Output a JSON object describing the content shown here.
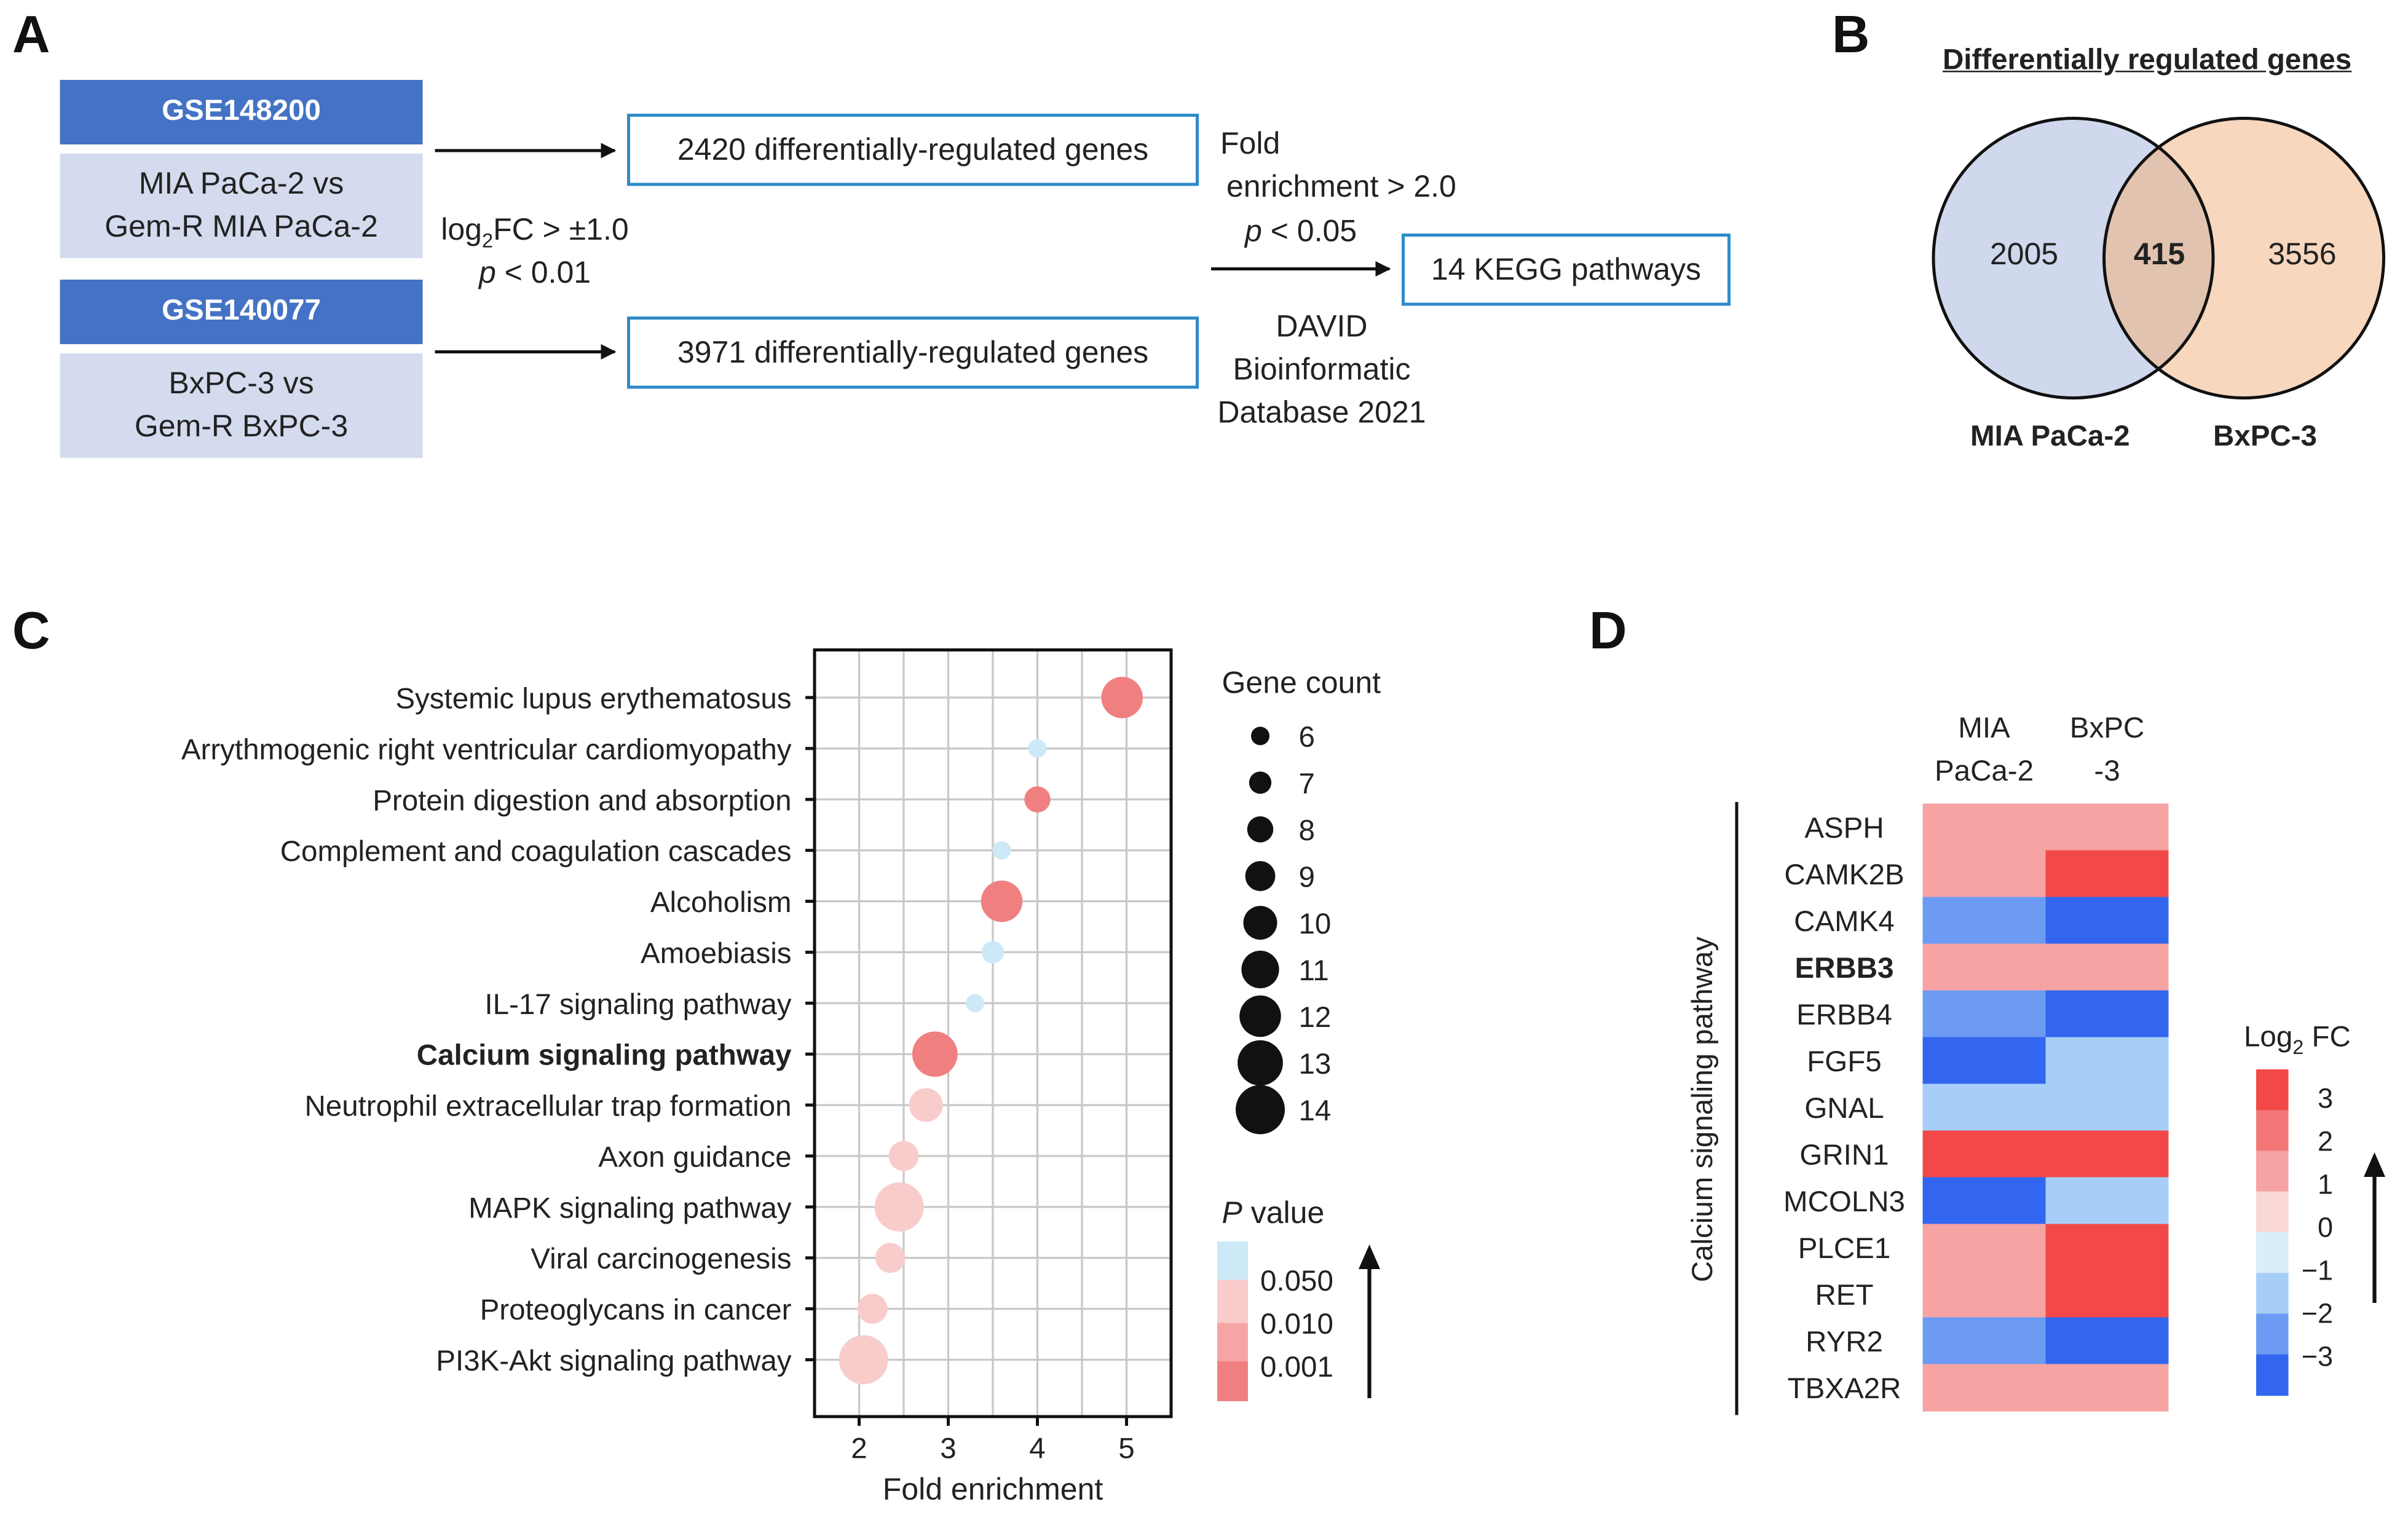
{
  "panels": {
    "a": "A",
    "b": "B",
    "c": "C",
    "d": "D"
  },
  "workflow": {
    "datasets": [
      {
        "id": "GSE148200",
        "comparison_line1": "MIA PaCa-2 vs",
        "comparison_line2": "Gem-R MIA PaCa-2",
        "result": "2420 differentially-regulated genes"
      },
      {
        "id": "GSE140077",
        "comparison_line1": "BxPC-3 vs",
        "comparison_line2": "Gem-R BxPC-3",
        "result": "3971 differentially-regulated genes"
      }
    ],
    "threshold": {
      "fc_prefix": "log",
      "fc_sub": "2",
      "fc_suffix": "FC > ±1.0",
      "p_symbol": "p",
      "p_rest": " < 0.01"
    },
    "enrichment": {
      "line1": "Fold",
      "line2": "enrichment > 2.0",
      "p_symbol": "p",
      "p_rest": " < 0.05"
    },
    "kegg_result": "14 KEGG pathways",
    "database": {
      "line1": "DAVID",
      "line2": "Bioinformatic",
      "line3": "Database 2021"
    }
  },
  "venn": {
    "title": "Differentially regulated genes",
    "left_label": "MIA PaCa-2",
    "right_label": "BxPC-3",
    "left_only": "2005",
    "overlap": "415",
    "right_only": "3556",
    "colors": {
      "left": "#cfd8ec",
      "right": "#f8d7bf",
      "overlap": "#e2c3af"
    }
  },
  "chart_data": [
    {
      "type": "scatter",
      "title": "",
      "xlabel": "Fold enrichment",
      "ylabel": "",
      "xlim": [
        1.5,
        5.5
      ],
      "xticks": [
        2,
        3,
        4,
        5
      ],
      "grid": true,
      "categories": [
        "Systemic lupus erythematosus",
        "Arrythmogenic right ventricular cardiomyopathy",
        "Protein digestion and absorption",
        "Complement and coagulation cascades",
        "Alcoholism",
        "Amoebiasis",
        "IL-17 signaling pathway",
        "Calcium signaling pathway",
        "Neutrophil extracellular trap formation",
        "Axon guidance",
        "MAPK signaling pathway",
        "Viral carcinogenesis",
        "Proteoglycans in cancer",
        "PI3K-Akt signaling pathway"
      ],
      "highlight": "Calcium signaling pathway",
      "points": [
        {
          "pathway": "Systemic lupus erythematosus",
          "fold_enrichment": 4.95,
          "gene_count": 12,
          "p_bin": "0.001"
        },
        {
          "pathway": "Arrythmogenic right ventricular cardiomyopathy",
          "fold_enrichment": 4.0,
          "gene_count": 6,
          "p_bin": "0.050"
        },
        {
          "pathway": "Protein digestion and absorption",
          "fold_enrichment": 4.0,
          "gene_count": 8,
          "p_bin": "0.001"
        },
        {
          "pathway": "Complement and coagulation cascades",
          "fold_enrichment": 3.6,
          "gene_count": 6,
          "p_bin": "0.050"
        },
        {
          "pathway": "Alcoholism",
          "fold_enrichment": 3.6,
          "gene_count": 12,
          "p_bin": "0.001"
        },
        {
          "pathway": "Amoebiasis",
          "fold_enrichment": 3.5,
          "gene_count": 7,
          "p_bin": "0.050"
        },
        {
          "pathway": "IL-17 signaling pathway",
          "fold_enrichment": 3.3,
          "gene_count": 6,
          "p_bin": "0.050"
        },
        {
          "pathway": "Calcium signaling pathway",
          "fold_enrichment": 2.85,
          "gene_count": 13,
          "p_bin": "0.001"
        },
        {
          "pathway": "Neutrophil extracellular trap formation",
          "fold_enrichment": 2.75,
          "gene_count": 10,
          "p_bin": "0.010"
        },
        {
          "pathway": "Axon guidance",
          "fold_enrichment": 2.5,
          "gene_count": 9,
          "p_bin": "0.010"
        },
        {
          "pathway": "MAPK signaling pathway",
          "fold_enrichment": 2.45,
          "gene_count": 14,
          "p_bin": "0.010"
        },
        {
          "pathway": "Viral carcinogenesis",
          "fold_enrichment": 2.35,
          "gene_count": 9,
          "p_bin": "0.010"
        },
        {
          "pathway": "Proteoglycans in cancer",
          "fold_enrichment": 2.15,
          "gene_count": 9,
          "p_bin": "0.010"
        },
        {
          "pathway": "PI3K-Akt signaling pathway",
          "fold_enrichment": 2.05,
          "gene_count": 14,
          "p_bin": "0.010"
        }
      ],
      "size_legend": {
        "title": "Gene count",
        "values": [
          6,
          7,
          8,
          9,
          10,
          11,
          12,
          13,
          14
        ]
      },
      "color_legend": {
        "title_italic": "P",
        "title_rest": " value",
        "bins": [
          {
            "label": "0.050",
            "color": "#cde9f7"
          },
          {
            "label": "0.010",
            "color": "#f9cccc"
          },
          {
            "label": "0.001",
            "color": "#f08080"
          }
        ]
      }
    },
    {
      "type": "heatmap",
      "title": "",
      "columns": [
        {
          "line1": "MIA",
          "line2": "PaCa-2"
        },
        {
          "line1": "BxPC",
          "line2": "-3"
        }
      ],
      "group_label": "Calcium signaling pathway",
      "highlight": "ERBB3",
      "rows": [
        "ASPH",
        "CAMK2B",
        "CAMK4",
        "ERBB3",
        "ERBB4",
        "FGF5",
        "GNAL",
        "GRIN1",
        "MCOLN3",
        "PLCE1",
        "RET",
        "RYR2",
        "TBXA2R"
      ],
      "values": [
        [
          2,
          2
        ],
        [
          2,
          3
        ],
        [
          -2,
          -3
        ],
        [
          2,
          2
        ],
        [
          -2,
          -3
        ],
        [
          -3,
          -1
        ],
        [
          -1,
          -1
        ],
        [
          3,
          3
        ],
        [
          -3,
          -1
        ],
        [
          2,
          3
        ],
        [
          2,
          3
        ],
        [
          -2,
          -3
        ],
        [
          2,
          2
        ]
      ],
      "legend": {
        "title_prefix": "Log",
        "title_sub": "2",
        "title_suffix": " FC",
        "ticks": [
          "3",
          "2",
          "1",
          "0",
          "−1",
          "−2",
          "−3"
        ],
        "colors": [
          "#f24848",
          "#f47777",
          "#f6a3a3",
          "#f9d7d7",
          "#d8eefb",
          "#a7cef7",
          "#6d9bf4",
          "#3366ee"
        ]
      }
    }
  ]
}
